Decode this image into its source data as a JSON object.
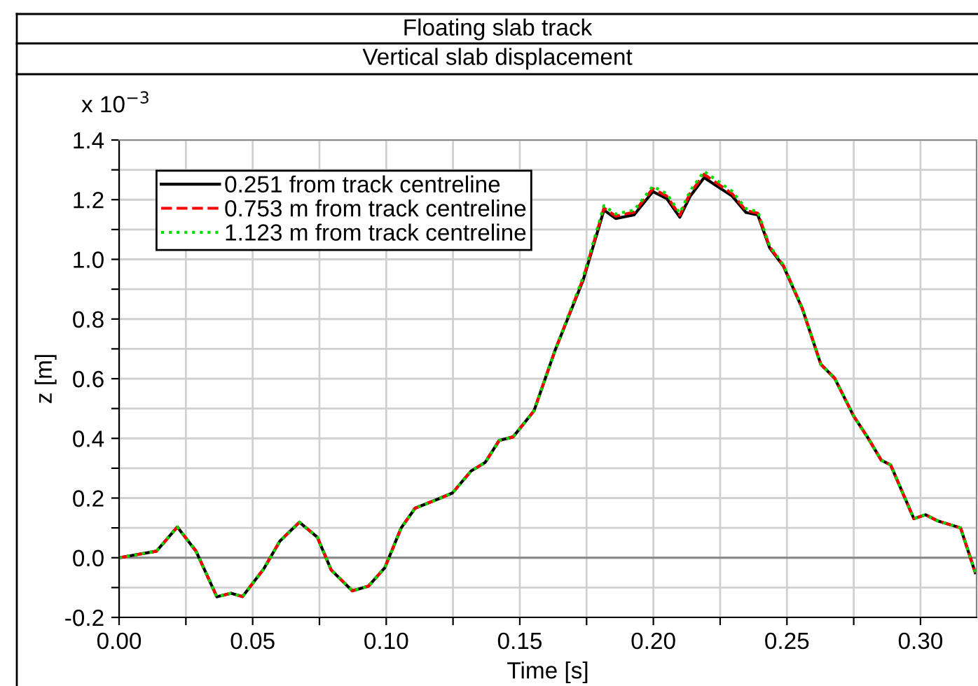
{
  "chart_data": {
    "type": "line",
    "title": "Floating slab track",
    "subtitle": "Vertical slab displacement",
    "xlabel": "Time [s]",
    "ylabel": "z [m]",
    "annotations": [
      "x 10$^{−3}$"
    ],
    "xlim": [
      0,
      0.321
    ],
    "ylim": [
      -0.2,
      1.4
    ],
    "xticks": [
      {
        "value": 0,
        "label": "0.00"
      },
      {
        "value": 0.025,
        "label": null
      },
      0.05,
      {
        "value": 0.075,
        "label": null
      },
      {
        "value": 0.1,
        "label": "0.10"
      },
      {
        "value": 0.125,
        "label": null
      },
      0.15,
      {
        "value": 0.175,
        "label": null
      },
      {
        "value": 0.2,
        "label": "0.20"
      },
      {
        "value": 0.225,
        "label": null
      },
      0.25,
      {
        "value": 0.275,
        "label": null
      },
      {
        "value": 0.3,
        "label": "0.30"
      }
    ],
    "yticks": [
      {
        "value": -0.2,
        "label": "-0.2"
      },
      {
        "value": -0.1,
        "label": null
      },
      {
        "value": 0,
        "label": "0.0"
      },
      {
        "value": 0.1,
        "label": null
      },
      0.2,
      {
        "value": 0.3,
        "label": null
      },
      0.4,
      {
        "value": 0.5,
        "label": null
      },
      0.6,
      {
        "value": 0.7,
        "label": null
      },
      0.8,
      {
        "value": 0.9,
        "label": null
      },
      {
        "value": 1.0,
        "label": "1.0"
      },
      {
        "value": 1.1,
        "label": null
      },
      1.2,
      {
        "value": 1.3,
        "label": null
      },
      1.4
    ],
    "grid": true,
    "legend": "top left",
    "x": [
      0,
      0.014,
      0.0218,
      0.0288,
      0.0366,
      0.0419,
      0.0462,
      0.0541,
      0.0602,
      0.0675,
      0.0742,
      0.0794,
      0.0873,
      0.0934,
      0.0995,
      0.1056,
      0.1108,
      0.1195,
      0.1248,
      0.1318,
      0.137,
      0.1423,
      0.1475,
      0.1553,
      0.1632,
      0.1737,
      0.1815,
      0.1859,
      0.1928,
      0.1998,
      0.205,
      0.2099,
      0.2138,
      0.219,
      0.2295,
      0.2347,
      0.2391,
      0.2435,
      0.2487,
      0.2557,
      0.2627,
      0.2679,
      0.2749,
      0.2801,
      0.2853,
      0.2888,
      0.2975,
      0.3019,
      0.3063,
      0.315,
      0.3205
    ],
    "series": [
      {
        "name": "0.251 from track centreline",
        "color": "#000000",
        "line_style": "solid",
        "values": [
          0,
          0.022,
          0.103,
          0.022,
          -0.131,
          -0.119,
          -0.13,
          -0.038,
          0.056,
          0.119,
          0.069,
          -0.041,
          -0.111,
          -0.095,
          -0.033,
          0.1,
          0.166,
          0.197,
          0.217,
          0.291,
          0.319,
          0.393,
          0.405,
          0.492,
          0.695,
          0.93,
          1.165,
          1.137,
          1.149,
          1.227,
          1.204,
          1.141,
          1.212,
          1.274,
          1.212,
          1.157,
          1.149,
          1.039,
          0.977,
          0.836,
          0.648,
          0.601,
          0.476,
          0.405,
          0.327,
          0.311,
          0.131,
          0.144,
          0.124,
          0.1,
          -0.05
        ]
      },
      {
        "name": "0.753 m from track centreline",
        "color": "#ff0000",
        "line_style": "dashed",
        "values": [
          0,
          0.022,
          0.103,
          0.022,
          -0.131,
          -0.119,
          -0.13,
          -0.038,
          0.056,
          0.119,
          0.069,
          -0.041,
          -0.111,
          -0.095,
          -0.033,
          0.1,
          0.166,
          0.197,
          0.217,
          0.291,
          0.319,
          0.393,
          0.405,
          0.492,
          0.695,
          0.935,
          1.172,
          1.145,
          1.158,
          1.237,
          1.212,
          1.148,
          1.222,
          1.285,
          1.22,
          1.163,
          1.155,
          1.042,
          0.979,
          0.837,
          0.648,
          0.601,
          0.476,
          0.405,
          0.327,
          0.311,
          0.131,
          0.144,
          0.124,
          0.1,
          -0.05
        ]
      },
      {
        "name": "1.123 m from track centreline",
        "color": "#00dd00",
        "line_style": "dotted",
        "values": [
          0,
          0.022,
          0.103,
          0.022,
          -0.131,
          -0.119,
          -0.13,
          -0.038,
          0.056,
          0.119,
          0.069,
          -0.041,
          -0.111,
          -0.095,
          -0.033,
          0.1,
          0.166,
          0.197,
          0.217,
          0.291,
          0.319,
          0.393,
          0.405,
          0.492,
          0.695,
          0.94,
          1.18,
          1.152,
          1.165,
          1.245,
          1.22,
          1.155,
          1.23,
          1.295,
          1.228,
          1.17,
          1.16,
          1.046,
          0.981,
          0.838,
          0.648,
          0.601,
          0.476,
          0.405,
          0.327,
          0.311,
          0.131,
          0.144,
          0.124,
          0.1,
          -0.05
        ]
      }
    ]
  }
}
